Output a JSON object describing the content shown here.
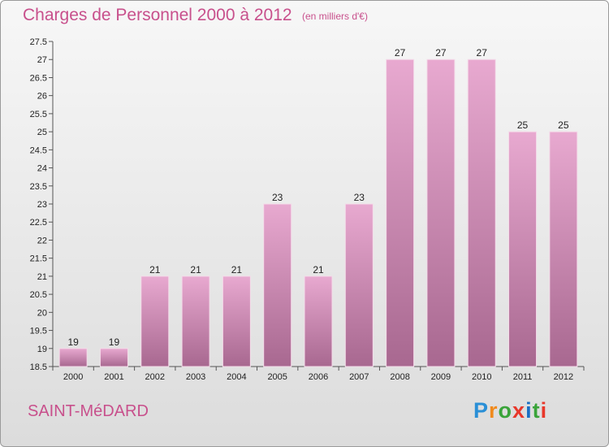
{
  "title": "Charges de Personnel 2000 à 2012",
  "subtitle": "(en milliers d'€)",
  "place": "SAINT-MéDARD",
  "logo": {
    "letters": [
      "P",
      "r",
      "o",
      "x",
      "i",
      "t",
      "i"
    ],
    "colors": [
      "#2a8fd6",
      "#f08a1c",
      "#3aa43a",
      "#e8372a",
      "#1a6fc4",
      "#3aa43a",
      "#e8372a"
    ]
  },
  "colors": {
    "bar_light": "#e8a9d0",
    "bar_dark": "#a86890",
    "text_accent": "#c8508c"
  },
  "chart_data": {
    "type": "bar",
    "categories": [
      "2000",
      "2001",
      "2002",
      "2003",
      "2004",
      "2005",
      "2006",
      "2007",
      "2008",
      "2009",
      "2010",
      "2011",
      "2012"
    ],
    "values": [
      19,
      19,
      21,
      21,
      21,
      23,
      21,
      23,
      27,
      27,
      27,
      25,
      25
    ],
    "ylim": [
      18.5,
      27.5
    ],
    "yticks": [
      "18.5",
      "19",
      "19.5",
      "20",
      "20.5",
      "21",
      "21.5",
      "22",
      "22.5",
      "23",
      "23.5",
      "24",
      "24.5",
      "25",
      "25.5",
      "26",
      "26.5",
      "27",
      "27.5"
    ],
    "xlabel": "",
    "ylabel": "",
    "grid": false,
    "data_labels": true
  }
}
